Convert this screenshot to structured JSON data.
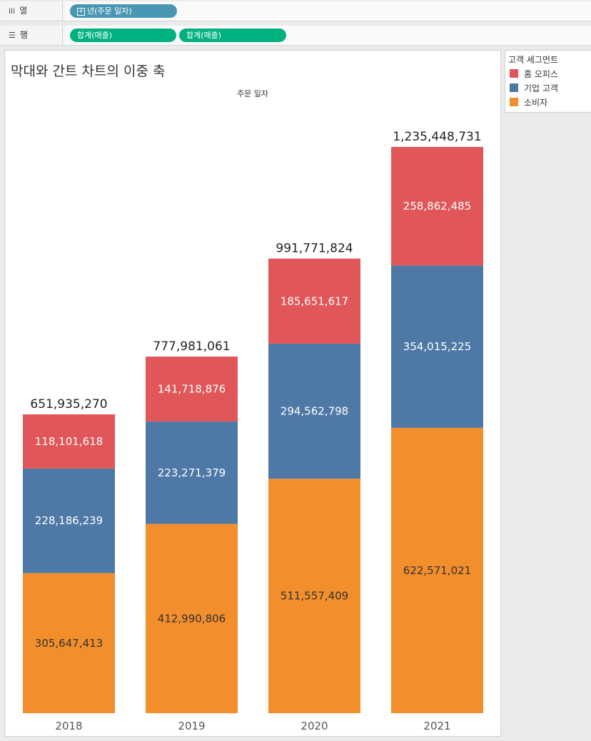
{
  "shelves": {
    "columns": {
      "icon": "iii",
      "label": "열",
      "pills": [
        {
          "label": "년(주문 일자)",
          "color": "#4996b2"
        }
      ]
    },
    "rows": {
      "icon": "☰",
      "label": "행",
      "pills": [
        {
          "label": "합계(매출)",
          "color": "#00b180"
        },
        {
          "label": "합계(매출)",
          "color": "#00b180"
        }
      ]
    }
  },
  "sheet": {
    "title": "막대와 간트 차트의 이중 축",
    "column_header": "주문 일자"
  },
  "legend": {
    "title": "고객 세그먼트",
    "items": [
      {
        "label": "홈 오피스",
        "color": "#e15759"
      },
      {
        "label": "기업 고객",
        "color": "#4e79a7"
      },
      {
        "label": "소비자",
        "color": "#f28e2b"
      }
    ]
  },
  "chart_data": {
    "type": "bar",
    "stacked": true,
    "categories": [
      "2018",
      "2019",
      "2020",
      "2021"
    ],
    "series": [
      {
        "name": "소비자",
        "color": "#f28e2b",
        "values": [
          305647413,
          412990806,
          511557409,
          622571021
        ],
        "labels": [
          "305,647,413",
          "412,990,806",
          "511,557,409",
          "622,571,021"
        ]
      },
      {
        "name": "기업 고객",
        "color": "#4e79a7",
        "values": [
          228186239,
          223271379,
          294562798,
          354015225
        ],
        "labels": [
          "228,186,239",
          "223,271,379",
          "294,562,798",
          "354,015,225"
        ]
      },
      {
        "name": "홈 오피스",
        "color": "#e15759",
        "values": [
          118101618,
          141718876,
          185651617,
          258862485
        ],
        "labels": [
          "118,101,618",
          "141,718,876",
          "185,651,617",
          "258,862,485"
        ]
      }
    ],
    "totals": [
      651935270,
      777981061,
      991771824,
      1235448731
    ],
    "total_labels": [
      "651,935,270",
      "777,981,061",
      "991,771,824",
      "1,235,448,731"
    ],
    "ylim": [
      0,
      1235448731
    ],
    "grid": false,
    "legend_position": "right"
  }
}
